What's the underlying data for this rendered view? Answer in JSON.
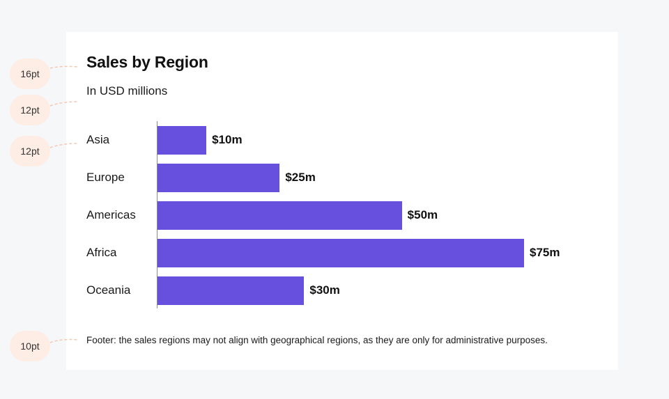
{
  "card": {
    "title": "Sales by Region",
    "subtitle": "In USD millions",
    "footer": "Footer: the sales regions may not align with geographical regions, as they are only for administrative purposes."
  },
  "annotations": [
    "16pt",
    "12pt",
    "12pt",
    "10pt"
  ],
  "colors": {
    "bar": "#6650dd",
    "background": "#f6f7f9",
    "annotation": "#fdede5"
  },
  "chart_data": {
    "type": "bar",
    "orientation": "horizontal",
    "categories": [
      "Asia",
      "Europe",
      "Americas",
      "Africa",
      "Oceania"
    ],
    "values": [
      10,
      25,
      50,
      75,
      30
    ],
    "data_labels": [
      "$10m",
      "$25m",
      "$50m",
      "$75m",
      "$30m"
    ],
    "title": "Sales by Region",
    "subtitle": "In USD millions",
    "xlabel": "",
    "ylabel": "",
    "xlim": [
      0,
      75
    ],
    "grid": false
  }
}
